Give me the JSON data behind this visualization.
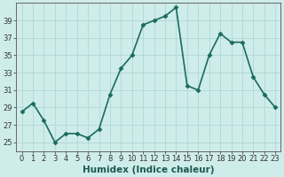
{
  "x": [
    0,
    1,
    2,
    3,
    4,
    5,
    6,
    7,
    8,
    9,
    10,
    11,
    12,
    13,
    14,
    15,
    16,
    17,
    18,
    19,
    20,
    21,
    22,
    23
  ],
  "y": [
    28.5,
    29.5,
    27.5,
    25.0,
    26.0,
    26.0,
    25.5,
    26.5,
    30.5,
    33.5,
    35.0,
    38.5,
    39.0,
    39.5,
    40.5,
    31.5,
    31.0,
    35.0,
    37.5,
    36.5,
    36.5,
    32.5,
    30.5,
    29.0
  ],
  "xlabel": "Humidex (Indice chaleur)",
  "ylim": [
    24,
    41
  ],
  "xlim": [
    -0.5,
    23.5
  ],
  "yticks": [
    25,
    27,
    29,
    31,
    33,
    35,
    37,
    39
  ],
  "xticks": [
    0,
    1,
    2,
    3,
    4,
    5,
    6,
    7,
    8,
    9,
    10,
    11,
    12,
    13,
    14,
    15,
    16,
    17,
    18,
    19,
    20,
    21,
    22,
    23
  ],
  "xtick_labels": [
    "0",
    "1",
    "2",
    "3",
    "4",
    "5",
    "6",
    "7",
    "8",
    "9",
    "10",
    "11",
    "12",
    "13",
    "14",
    "15",
    "16",
    "17",
    "18",
    "19",
    "20",
    "21",
    "22",
    "23"
  ],
  "line_color": "#1a6b5e",
  "marker_color": "#1a6b5e",
  "bg_color": "#ceecea",
  "grid_color": "#b0d8d4",
  "marker": "D",
  "marker_size": 2.5,
  "line_width": 1.2,
  "tick_fontsize": 6.0,
  "xlabel_fontsize": 7.5
}
